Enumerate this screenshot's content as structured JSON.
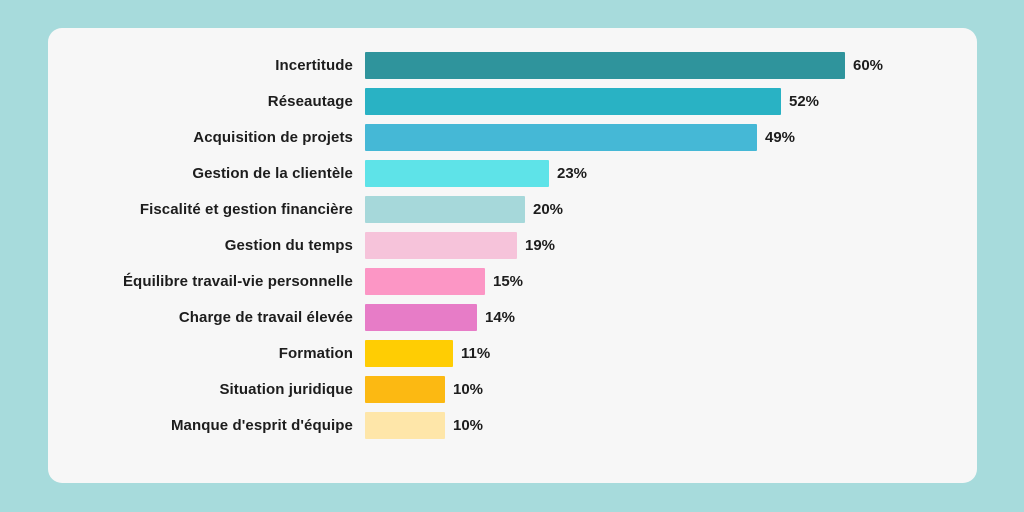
{
  "page": {
    "background_color": "#a7dbdc",
    "card_background_color": "#f7f7f7",
    "text_color": "#1d1d1d"
  },
  "chart_data": {
    "type": "bar",
    "orientation": "horizontal",
    "title": "",
    "xlabel": "",
    "ylabel": "",
    "unit": "%",
    "xlim": [
      0,
      60
    ],
    "grid": false,
    "legend": null,
    "categories": [
      "Incertitude",
      "Réseautage",
      "Acquisition de projets",
      "Gestion de la clientèle",
      "Fiscalité et gestion financière",
      "Gestion du temps",
      "Équilibre travail-vie personnelle",
      "Charge de travail élevée",
      "Formation",
      "Situation juridique",
      "Manque d'esprit d'équipe"
    ],
    "values": [
      60,
      52,
      49,
      23,
      20,
      19,
      15,
      14,
      11,
      10,
      10
    ],
    "value_labels": [
      "60%",
      "52%",
      "49%",
      "23%",
      "20%",
      "19%",
      "15%",
      "14%",
      "11%",
      "10%",
      "10%"
    ],
    "bar_colors": [
      "#2f949c",
      "#29b2c4",
      "#45b8d6",
      "#5ee3e8",
      "#a6d8da",
      "#f6c3da",
      "#fc96c5",
      "#e77cc7",
      "#ffcd03",
      "#fcb912",
      "#fee6a9"
    ]
  }
}
